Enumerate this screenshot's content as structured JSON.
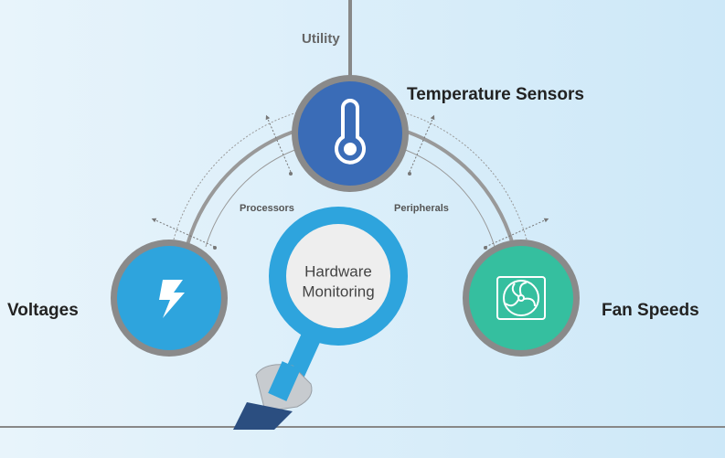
{
  "utility": "Utility",
  "nodes": [
    {
      "label": "Temperature Sensors"
    },
    {
      "label": "Voltages"
    },
    {
      "label": "Fan Speeds"
    }
  ],
  "arcs": [
    {
      "label": "Processors"
    },
    {
      "label": "Peripherals"
    }
  ],
  "center": {
    "lines": [
      "Hardware",
      "Monitoring"
    ]
  }
}
